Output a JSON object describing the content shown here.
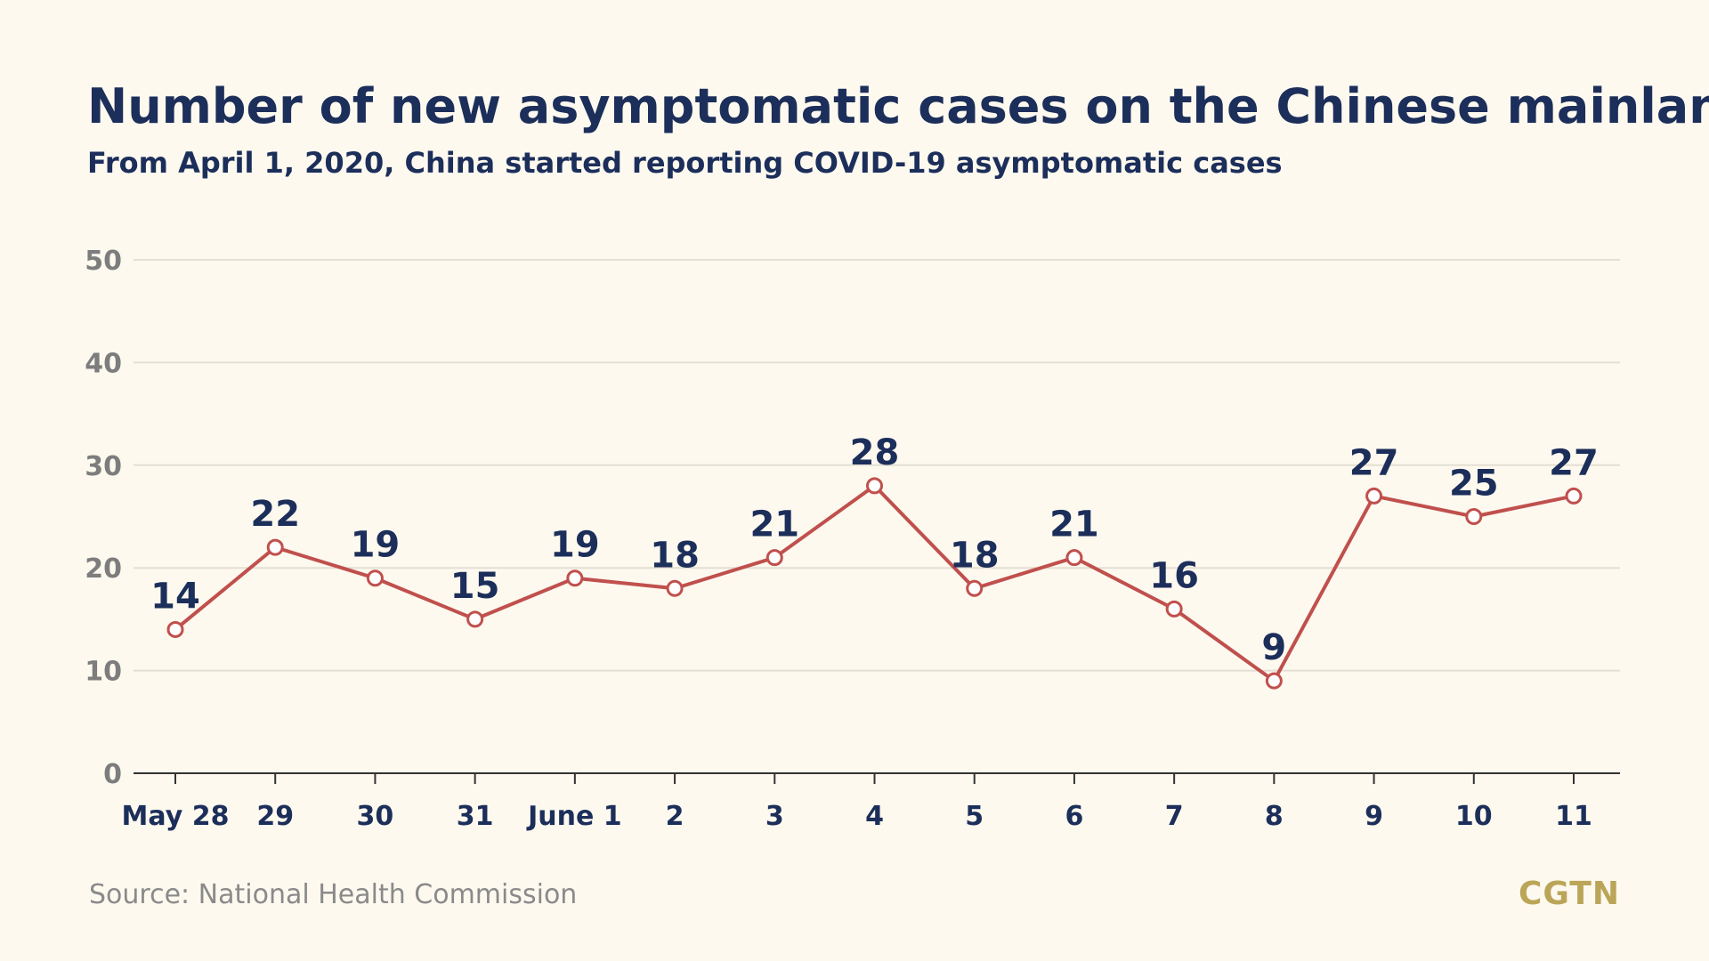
{
  "header": {
    "title": "Number of new asymptomatic cases on the Chinese mainland",
    "subtitle": "From April 1, 2020, China started reporting COVID-19 asymptomatic cases"
  },
  "footer": {
    "source": "Source: National Health Commission",
    "logo": "CGTN"
  },
  "colors": {
    "line": "#c0504d",
    "text": "#1c2e5a",
    "grid": "#e3dfd4",
    "background": "#fdf9ef",
    "logo": "#bba558"
  },
  "chart_data": {
    "type": "line",
    "title": "Number of new asymptomatic cases on the Chinese mainland",
    "subtitle": "From April 1, 2020, China started reporting COVID-19 asymptomatic cases",
    "xlabel": "",
    "ylabel": "",
    "categories": [
      "May 28",
      "29",
      "30",
      "31",
      "June 1",
      "2",
      "3",
      "4",
      "5",
      "6",
      "7",
      "8",
      "9",
      "10",
      "11"
    ],
    "series": [
      {
        "values": [
          14,
          22,
          19,
          15,
          19,
          18,
          21,
          28,
          18,
          21,
          16,
          9,
          27,
          25,
          27
        ]
      }
    ],
    "ylim": [
      0,
      50
    ],
    "yticks": [
      0,
      10,
      20,
      30,
      40,
      50
    ],
    "grid": true,
    "legend": "none",
    "data_labels": true
  }
}
